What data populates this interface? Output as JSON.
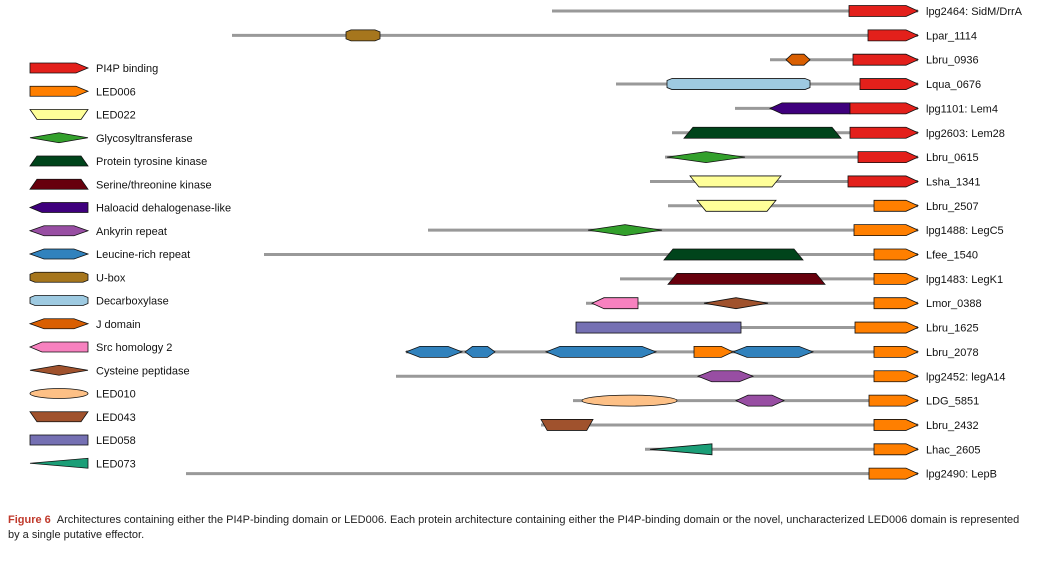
{
  "caption": {
    "label": "Figure 6",
    "text": "Architectures containing either the PI4P-binding domain or LED006. Each protein architecture containing either the PI4P-binding domain or the novel, uncharacterized LED006 domain is represented by a single putative effector."
  },
  "legend": [
    {
      "name": "PI4P binding",
      "color": "#e3201b",
      "shape": "arrow"
    },
    {
      "name": "LED006",
      "color": "#ff7f00",
      "shape": "arrow"
    },
    {
      "name": "LED022",
      "color": "#ffff99",
      "shape": "trapezoid"
    },
    {
      "name": "Glycosyltransferase",
      "color": "#33a02c",
      "shape": "diamond"
    },
    {
      "name": "Protein tyrosine kinase",
      "color": "#00441b",
      "shape": "trapezoid-down"
    },
    {
      "name": "Serine/threonine kinase",
      "color": "#67000d",
      "shape": "trapezoid-down"
    },
    {
      "name": "Haloacid dehalogenase-like",
      "color": "#3f007d",
      "shape": "arrow-left"
    },
    {
      "name": "Ankyrin repeat",
      "color": "#984ea3",
      "shape": "hexagon"
    },
    {
      "name": "Leucine-rich repeat",
      "color": "#3182bd",
      "shape": "hexagon"
    },
    {
      "name": "U-box",
      "color": "#a6761d",
      "shape": "octagon"
    },
    {
      "name": "Decarboxylase",
      "color": "#9ecae1",
      "shape": "octagon"
    },
    {
      "name": "J domain",
      "color": "#d95f02",
      "shape": "hexagon"
    },
    {
      "name": "Src homology 2",
      "color": "#f781bf",
      "shape": "arrow-left"
    },
    {
      "name": "Cysteine peptidase",
      "color": "#a0522d",
      "shape": "diamond"
    },
    {
      "name": "LED010",
      "color": "#fdc086",
      "shape": "ellipse"
    },
    {
      "name": "LED043",
      "color": "#a0522d",
      "shape": "trapezoid"
    },
    {
      "name": "LED058",
      "color": "#7570b3",
      "shape": "rect"
    },
    {
      "name": "LED073",
      "color": "#1b9e77",
      "shape": "triangle"
    }
  ],
  "proteins": [
    {
      "name": "lpg2464: SidM/DrrA",
      "line": [
        552,
        918
      ],
      "domains": [
        {
          "type": "PI4P binding",
          "x": [
            849,
            918
          ]
        }
      ]
    },
    {
      "name": "Lpar_1114",
      "line": [
        232,
        918
      ],
      "domains": [
        {
          "type": "U-box",
          "x": [
            346,
            380
          ]
        },
        {
          "type": "PI4P binding",
          "x": [
            868,
            918
          ]
        }
      ]
    },
    {
      "name": "Lbru_0936",
      "line": [
        770,
        918
      ],
      "domains": [
        {
          "type": "J domain",
          "x": [
            786,
            810
          ]
        },
        {
          "type": "PI4P binding",
          "x": [
            853,
            918
          ]
        }
      ]
    },
    {
      "name": "Lqua_0676",
      "line": [
        616,
        918
      ],
      "domains": [
        {
          "type": "Decarboxylase",
          "x": [
            667,
            810
          ]
        },
        {
          "type": "PI4P binding",
          "x": [
            860,
            918
          ]
        }
      ]
    },
    {
      "name": "lpg1101: Lem4",
      "line": [
        735,
        918
      ],
      "domains": [
        {
          "type": "Haloacid dehalogenase-like",
          "x": [
            770,
            850
          ]
        },
        {
          "type": "PI4P binding",
          "x": [
            850,
            918
          ]
        }
      ]
    },
    {
      "name": "lpg2603: Lem28",
      "line": [
        672,
        918
      ],
      "domains": [
        {
          "type": "Protein tyrosine kinase",
          "x": [
            684,
            841
          ]
        },
        {
          "type": "PI4P binding",
          "x": [
            850,
            918
          ]
        }
      ]
    },
    {
      "name": "Lbru_0615",
      "line": [
        665,
        918
      ],
      "domains": [
        {
          "type": "Glycosyltransferase",
          "x": [
            667,
            745
          ]
        },
        {
          "type": "PI4P binding",
          "x": [
            858,
            918
          ]
        }
      ]
    },
    {
      "name": "Lsha_1341",
      "line": [
        650,
        918
      ],
      "domains": [
        {
          "type": "LED022",
          "x": [
            690,
            781
          ]
        },
        {
          "type": "PI4P binding",
          "x": [
            848,
            918
          ]
        }
      ]
    },
    {
      "name": "Lbru_2507",
      "line": [
        668,
        918
      ],
      "domains": [
        {
          "type": "LED022",
          "x": [
            697,
            776
          ]
        },
        {
          "type": "LED006",
          "x": [
            874,
            918
          ]
        }
      ]
    },
    {
      "name": "lpg1488: LegC5",
      "line": [
        428,
        918
      ],
      "domains": [
        {
          "type": "Glycosyltransferase",
          "x": [
            588,
            662
          ]
        },
        {
          "type": "LED006",
          "x": [
            854,
            918
          ]
        }
      ]
    },
    {
      "name": "Lfee_1540",
      "line": [
        264,
        918
      ],
      "domains": [
        {
          "type": "Protein tyrosine kinase",
          "x": [
            664,
            803
          ]
        },
        {
          "type": "LED006",
          "x": [
            874,
            918
          ]
        }
      ]
    },
    {
      "name": "lpg1483: LegK1",
      "line": [
        620,
        918
      ],
      "domains": [
        {
          "type": "Serine/threonine kinase",
          "x": [
            668,
            825
          ]
        },
        {
          "type": "LED006",
          "x": [
            874,
            918
          ]
        }
      ]
    },
    {
      "name": "Lmor_0388",
      "line": [
        586,
        918
      ],
      "domains": [
        {
          "type": "Src homology 2",
          "x": [
            592,
            638
          ]
        },
        {
          "type": "Cysteine peptidase",
          "x": [
            704,
            768
          ]
        },
        {
          "type": "LED006",
          "x": [
            874,
            918
          ]
        }
      ]
    },
    {
      "name": "Lbru_1625",
      "line": [
        576,
        918
      ],
      "domains": [
        {
          "type": "LED058",
          "x": [
            576,
            741
          ]
        },
        {
          "type": "LED006",
          "x": [
            855,
            918
          ]
        }
      ]
    },
    {
      "name": "Lbru_2078",
      "line": [
        406,
        918
      ],
      "domains": [
        {
          "type": "Leucine-rich repeat",
          "x": [
            406,
            462
          ]
        },
        {
          "type": "Leucine-rich repeat",
          "x": [
            465,
            495
          ]
        },
        {
          "type": "Leucine-rich repeat",
          "x": [
            546,
            656
          ]
        },
        {
          "type": "LED006",
          "x": [
            694,
            733
          ]
        },
        {
          "type": "Leucine-rich repeat",
          "x": [
            733,
            813
          ]
        },
        {
          "type": "LED006",
          "x": [
            874,
            918
          ]
        }
      ]
    },
    {
      "name": "lpg2452: legA14",
      "line": [
        396,
        918
      ],
      "domains": [
        {
          "type": "Ankyrin repeat",
          "x": [
            698,
            753
          ]
        },
        {
          "type": "LED006",
          "x": [
            874,
            918
          ]
        }
      ]
    },
    {
      "name": "LDG_5851",
      "line": [
        573,
        918
      ],
      "domains": [
        {
          "type": "LED010",
          "x": [
            582,
            677
          ]
        },
        {
          "type": "Ankyrin repeat",
          "x": [
            736,
            784
          ]
        },
        {
          "type": "LED006",
          "x": [
            869,
            918
          ]
        }
      ]
    },
    {
      "name": "Lbru_2432",
      "line": [
        541,
        918
      ],
      "domains": [
        {
          "type": "LED043",
          "x": [
            541,
            593
          ]
        },
        {
          "type": "LED006",
          "x": [
            874,
            918
          ]
        }
      ]
    },
    {
      "name": "Lhac_2605",
      "line": [
        645,
        918
      ],
      "domains": [
        {
          "type": "LED073",
          "x": [
            650,
            712
          ]
        },
        {
          "type": "LED006",
          "x": [
            874,
            918
          ]
        }
      ]
    },
    {
      "name": "lpg2490: LepB",
      "line": [
        186,
        918
      ],
      "domains": [
        {
          "type": "LED006",
          "x": [
            869,
            918
          ]
        }
      ]
    }
  ]
}
